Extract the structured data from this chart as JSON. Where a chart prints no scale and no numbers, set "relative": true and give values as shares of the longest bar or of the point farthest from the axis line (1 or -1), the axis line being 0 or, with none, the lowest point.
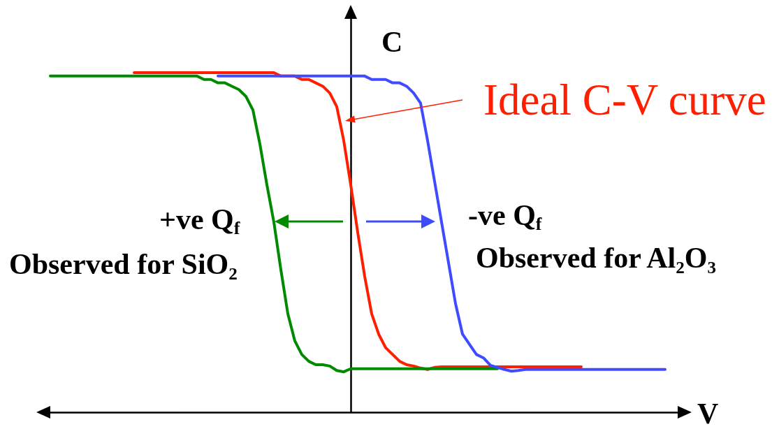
{
  "chart_data": {
    "type": "line",
    "relative": true,
    "xlabel": "V",
    "ylabel": "C",
    "marker": "none",
    "line_style": "solid",
    "categories": [
      null,
      null,
      null,
      null,
      null,
      null,
      null,
      null,
      null,
      null,
      null,
      null,
      null,
      null,
      null,
      null,
      null,
      null,
      null,
      null,
      null,
      null,
      null,
      null,
      null,
      null,
      null,
      null,
      null,
      null,
      null,
      null,
      null,
      null,
      null,
      null,
      null,
      null,
      null,
      null,
      null,
      null,
      null,
      null,
      null,
      null,
      null,
      null,
      null,
      null,
      null,
      null,
      null,
      null,
      null,
      null,
      null,
      null,
      null,
      null,
      null,
      null,
      null,
      null,
      null,
      null,
      null,
      null,
      null,
      null,
      null,
      null,
      null,
      null,
      null,
      null,
      null,
      null,
      null,
      null,
      null,
      null,
      null,
      null,
      null,
      null,
      null,
      null,
      null,
      null,
      null,
      null,
      null
    ],
    "annotations": [
      "+ve Q$_{f}$",
      "Observed for SiO₂",
      "-ve Q$_{f}$",
      "Observed for Al₂O₃"
    ],
    "series": [
      {
        "color": "#008a00",
        "values": [
          null,
          0.99,
          0.99,
          0.99,
          0.99,
          0.99,
          0.99,
          0.99,
          0.99,
          0.99,
          0.99,
          0.99,
          0.99,
          0.99,
          0.99,
          0.99,
          0.99,
          0.99,
          0.99,
          0.99,
          0.99,
          0.99,
          0.99,
          0.98,
          0.98,
          0.97,
          0.97,
          0.96,
          0.95,
          0.93,
          0.89,
          0.79,
          0.67,
          0.56,
          0.42,
          0.29,
          0.21,
          0.17,
          0.15,
          0.14,
          0.14,
          0.136,
          0.123,
          0.119,
          0.128,
          0.128,
          0.128,
          0.128,
          0.128,
          0.128,
          0.128,
          0.128,
          0.128,
          0.128,
          0.128,
          0.128,
          0.128,
          0.128,
          0.128,
          0.128,
          0.128,
          0.128,
          0.128,
          0.128,
          0.128,
          0.128,
          null,
          null,
          null,
          null,
          null,
          null,
          null,
          null,
          null,
          null,
          null,
          null,
          null,
          null,
          null,
          null,
          null,
          null,
          null,
          null,
          null,
          null,
          null,
          null,
          null,
          null,
          null
        ]
      },
      {
        "name": "Ideal C-V curve",
        "color": "#ff1e00",
        "values": [
          null,
          null,
          null,
          null,
          null,
          null,
          null,
          null,
          null,
          null,
          null,
          null,
          null,
          1,
          1,
          1,
          1,
          1,
          1,
          1,
          1,
          1,
          1,
          1,
          1,
          1,
          1,
          1,
          1,
          1,
          1,
          1,
          1,
          1,
          0.99,
          0.99,
          0.99,
          0.98,
          0.98,
          0.97,
          0.96,
          0.94,
          0.9,
          0.8,
          0.67,
          0.53,
          0.4,
          0.29,
          0.23,
          0.19,
          0.17,
          0.15,
          0.14,
          0.136,
          0.13,
          0.126,
          0.132,
          0.134,
          0.134,
          0.134,
          0.134,
          0.134,
          0.134,
          0.134,
          0.134,
          0.134,
          0.134,
          0.134,
          0.134,
          0.134,
          0.134,
          0.134,
          0.134,
          0.134,
          0.134,
          0.134,
          0.134,
          0.134,
          null,
          null,
          null,
          null,
          null,
          null,
          null,
          null,
          null,
          null,
          null,
          null,
          null,
          null,
          null
        ]
      },
      {
        "color": "#3f4bff",
        "values": [
          null,
          null,
          null,
          null,
          null,
          null,
          null,
          null,
          null,
          null,
          null,
          null,
          null,
          null,
          null,
          null,
          null,
          null,
          null,
          null,
          null,
          null,
          null,
          null,
          null,
          0.99,
          0.99,
          0.99,
          0.99,
          0.99,
          0.99,
          0.99,
          0.99,
          0.99,
          0.99,
          0.99,
          0.99,
          0.99,
          0.99,
          0.99,
          0.99,
          0.99,
          0.99,
          0.99,
          0.99,
          0.99,
          0.99,
          0.98,
          0.98,
          0.98,
          0.97,
          0.97,
          0.96,
          0.94,
          0.91,
          0.8,
          0.68,
          0.56,
          0.44,
          0.32,
          0.23,
          0.2,
          0.17,
          0.16,
          0.138,
          0.132,
          0.126,
          0.121,
          0.123,
          0.126,
          0.126,
          0.126,
          0.126,
          0.126,
          0.126,
          0.126,
          0.126,
          0.126,
          0.126,
          0.126,
          0.126,
          0.126,
          0.126,
          0.126,
          0.126,
          0.126,
          0.126,
          0.126,
          0.126,
          0.126,
          null,
          null,
          null
        ]
      }
    ]
  }
}
